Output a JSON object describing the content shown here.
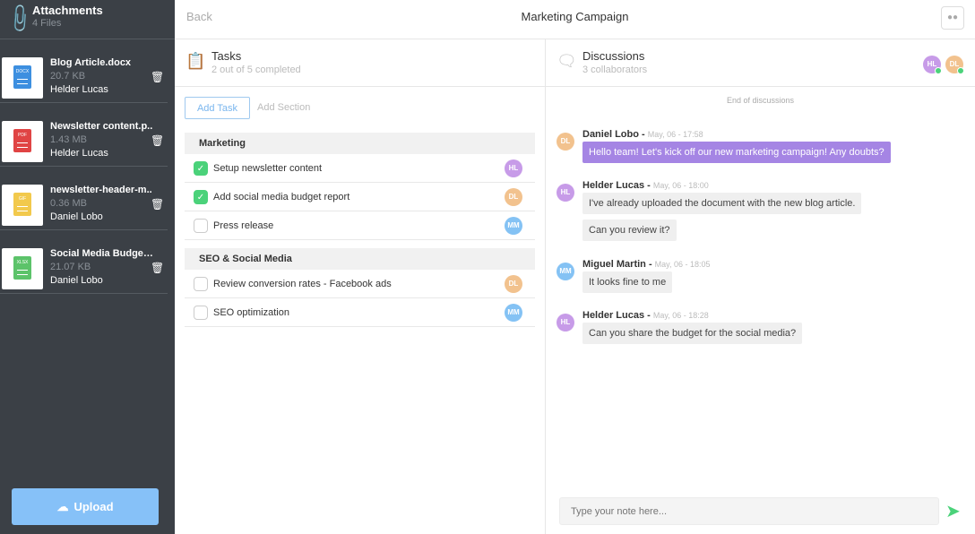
{
  "sidebar": {
    "title": "Attachments",
    "subtitle": "4 Files",
    "upload_label": "Upload",
    "files": [
      {
        "name": "Blog Article.docx",
        "size": "20.7 KB",
        "owner": "Helder Lucas",
        "type": "DOCX",
        "color": "#3d8fe0"
      },
      {
        "name": "Newsletter content.p..",
        "size": "1.43 MB",
        "owner": "Helder Lucas",
        "type": "PDF",
        "color": "#e04444"
      },
      {
        "name": "newsletter-header-m..",
        "size": "0.36 MB",
        "owner": "Daniel Lobo",
        "type": "GIF",
        "color": "#f2c94c"
      },
      {
        "name": "Social Media Budget...",
        "size": "21.07 KB",
        "owner": "Daniel Lobo",
        "type": "XLSX",
        "color": "#5cc36a"
      }
    ]
  },
  "topbar": {
    "back": "Back",
    "title": "Marketing Campaign"
  },
  "tasks": {
    "title": "Tasks",
    "subtitle": "2 out of 5 completed",
    "add_task": "Add Task",
    "add_section": "Add Section",
    "sections": [
      {
        "name": "Marketing",
        "items": [
          {
            "label": "Setup newsletter content",
            "done": true,
            "assignee": "HL"
          },
          {
            "label": "Add social media budget report",
            "done": true,
            "assignee": "DL"
          },
          {
            "label": "Press release",
            "done": false,
            "assignee": "MM"
          }
        ]
      },
      {
        "name": "SEO & Social Media",
        "items": [
          {
            "label": "Review conversion rates - Facebook ads",
            "done": false,
            "assignee": "DL"
          },
          {
            "label": "SEO optimization",
            "done": false,
            "assignee": "MM"
          }
        ]
      }
    ]
  },
  "discussions": {
    "title": "Discussions",
    "subtitle": "3 collaborators",
    "end": "End of discussions",
    "placeholder": "Type your note here...",
    "messages": [
      {
        "author": "Daniel Lobo",
        "time": "May, 06 - 17:58",
        "avatar": "DL",
        "bubbles": [
          "Hello team! Let's kick off our new marketing campaign! Any doubts?"
        ],
        "highlight": true
      },
      {
        "author": "Helder Lucas",
        "time": "May, 06 - 18:00",
        "avatar": "HL",
        "bubbles": [
          "I've already uploaded the document with the new blog article.",
          "Can you review it?"
        ]
      },
      {
        "author": "Miguel Martin",
        "time": "May, 06 - 18:05",
        "avatar": "MM",
        "bubbles": [
          "It looks fine to me"
        ]
      },
      {
        "author": "Helder Lucas",
        "time": "May, 06 - 18:28",
        "avatar": "HL",
        "bubbles": [
          "Can you share the budget for the social media?"
        ]
      }
    ]
  }
}
